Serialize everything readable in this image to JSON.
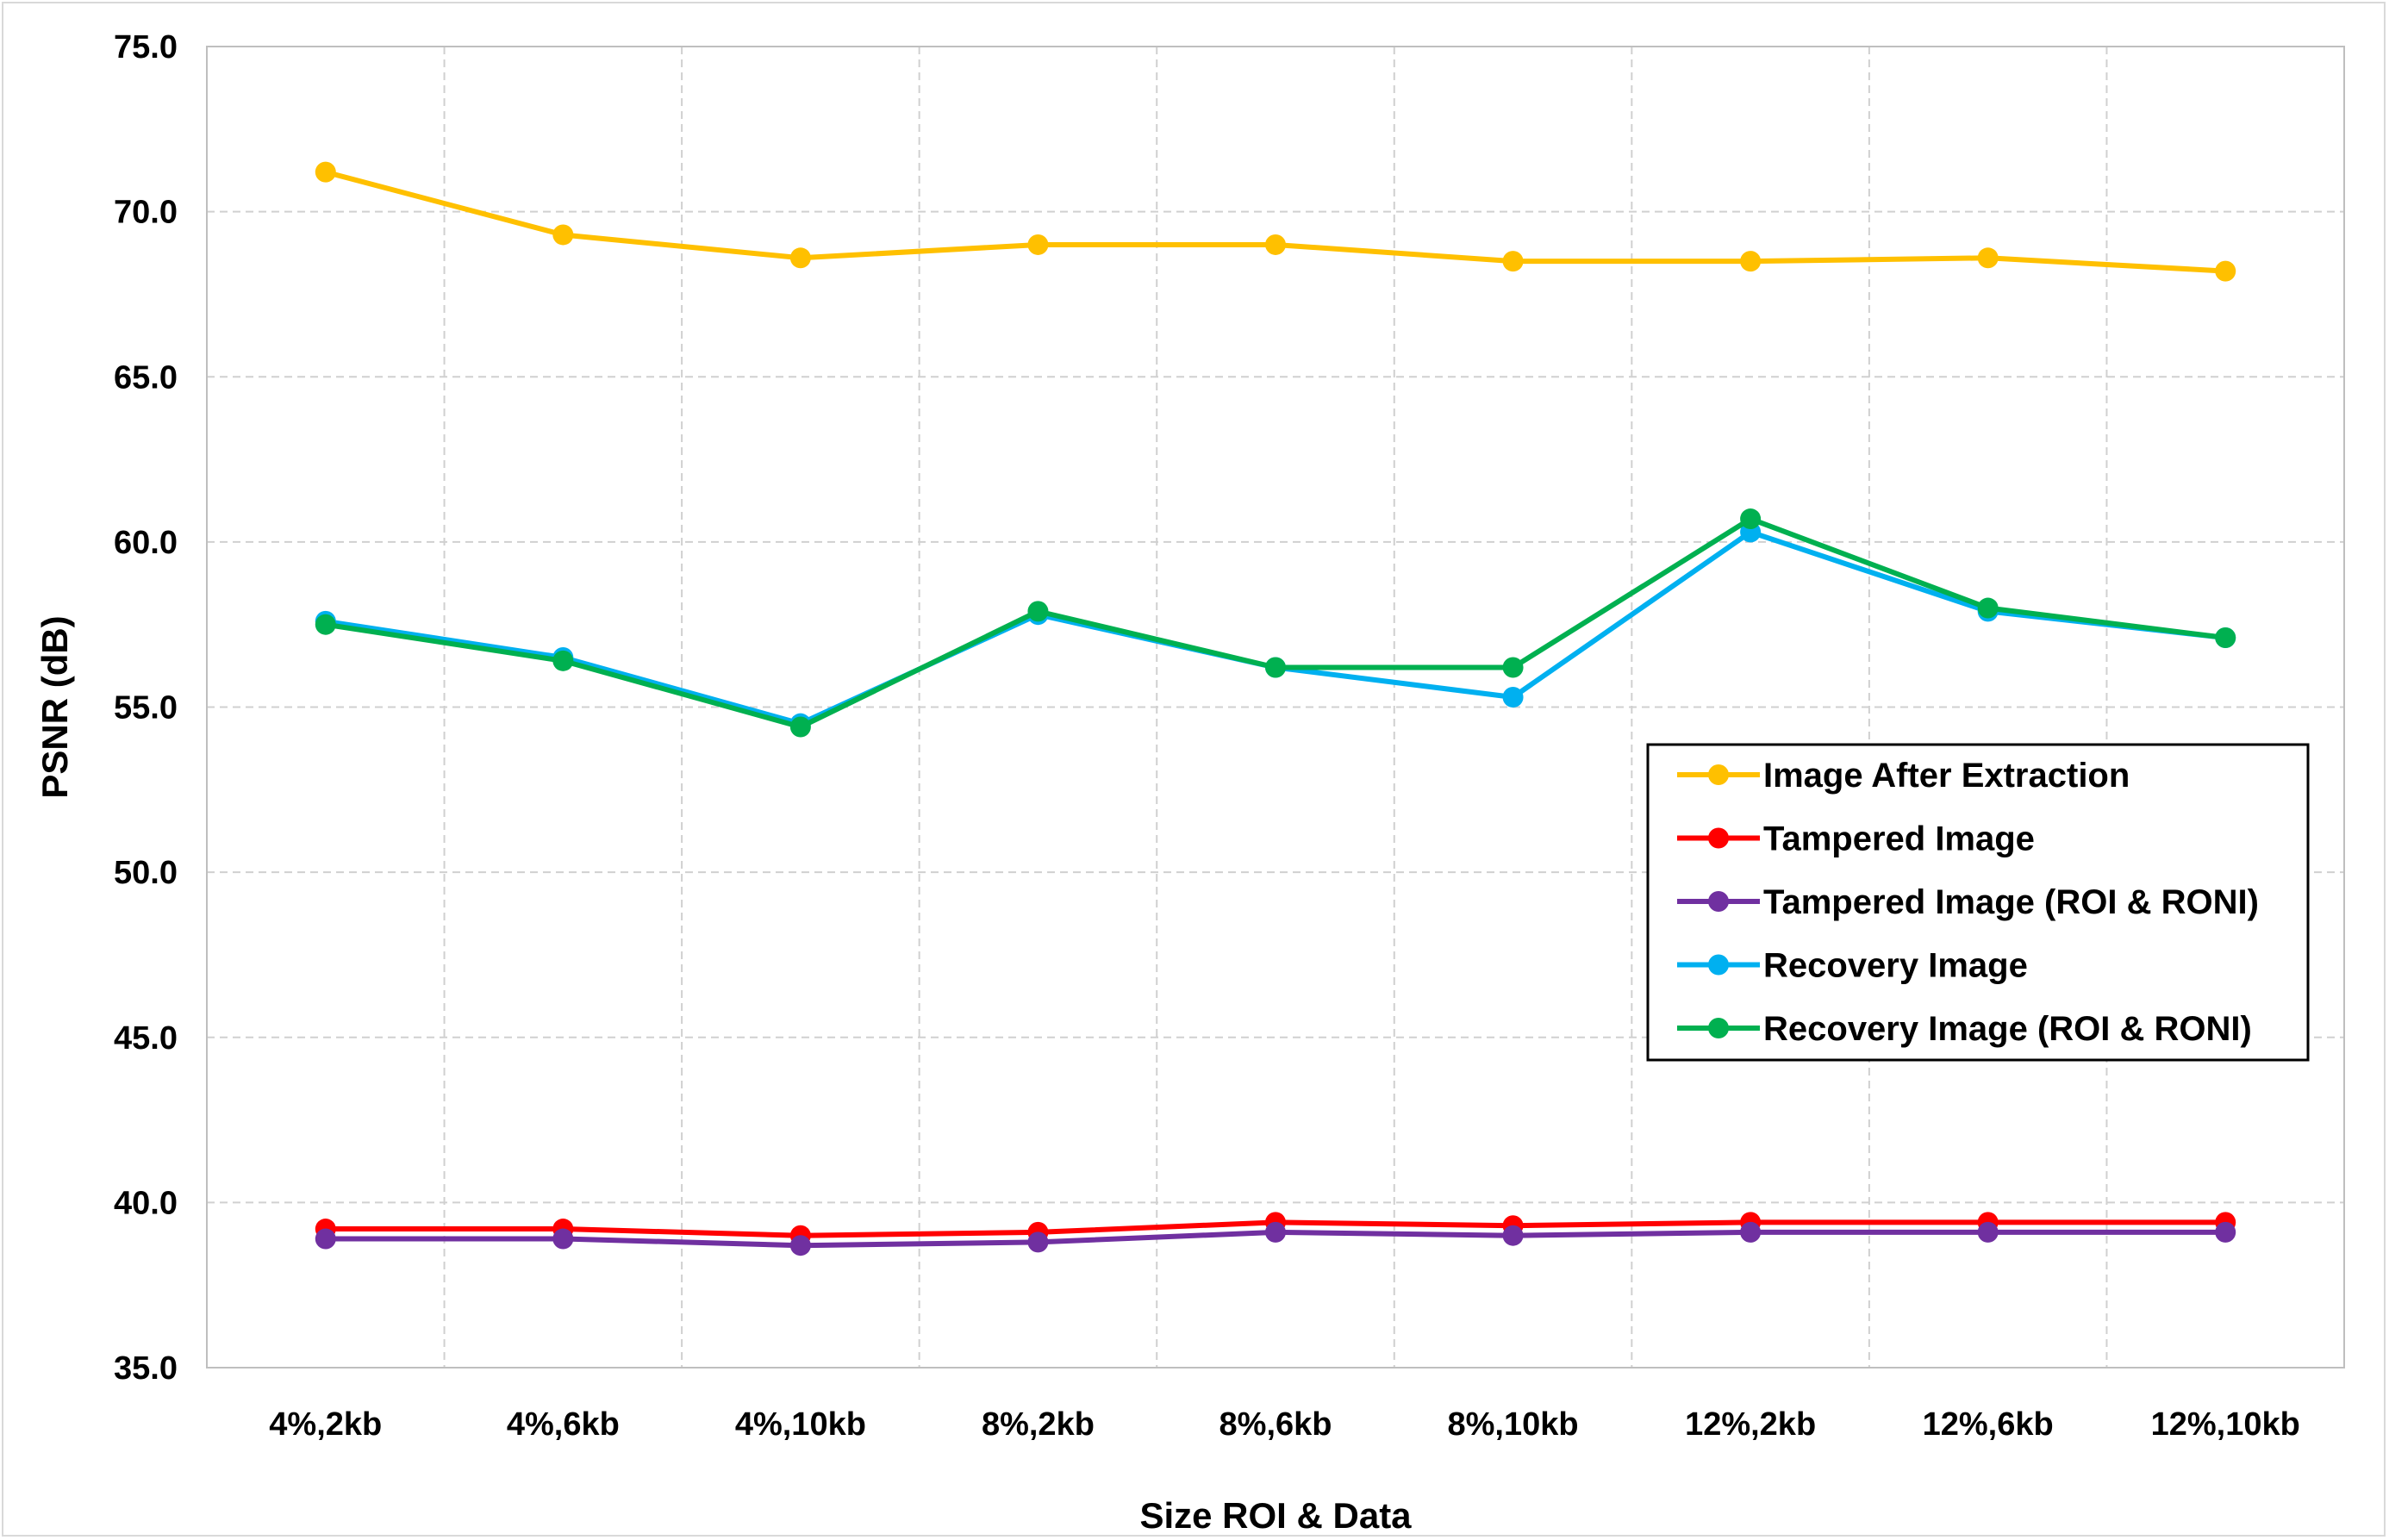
{
  "chart_data": {
    "type": "line",
    "title": "",
    "xlabel": "Size ROI & Data",
    "ylabel": "PSNR (dB)",
    "ylim": [
      35.0,
      75.0
    ],
    "y_ticks": [
      "35.0",
      "40.0",
      "45.0",
      "50.0",
      "55.0",
      "60.0",
      "65.0",
      "70.0",
      "75.0"
    ],
    "grid": true,
    "legend_position": "right-center",
    "categories": [
      "4%,2kb",
      "4%,6kb",
      "4%,10kb",
      "8%,2kb",
      "8%,6kb",
      "8%,10kb",
      "12%,2kb",
      "12%,6kb",
      "12%,10kb"
    ],
    "series": [
      {
        "name": "Image After Extraction",
        "color": "#FFC000",
        "values": [
          71.2,
          69.3,
          68.6,
          69.0,
          69.0,
          68.5,
          68.5,
          68.6,
          68.2
        ]
      },
      {
        "name": "Tampered Image",
        "color": "#FF0000",
        "values": [
          39.2,
          39.2,
          39.0,
          39.1,
          39.4,
          39.3,
          39.4,
          39.4,
          39.4
        ]
      },
      {
        "name": "Tampered Image (ROI & RONI)",
        "color": "#7030A0",
        "values": [
          38.9,
          38.9,
          38.7,
          38.8,
          39.1,
          39.0,
          39.1,
          39.1,
          39.1
        ]
      },
      {
        "name": "Recovery Image",
        "color": "#00B0F0",
        "values": [
          57.6,
          56.5,
          54.5,
          57.8,
          56.2,
          55.3,
          60.3,
          57.9,
          57.1
        ]
      },
      {
        "name": "Recovery Image (ROI & RONI)",
        "color": "#00B050",
        "values": [
          57.5,
          56.4,
          54.4,
          57.9,
          56.2,
          56.2,
          60.7,
          58.0,
          57.1
        ]
      }
    ]
  }
}
